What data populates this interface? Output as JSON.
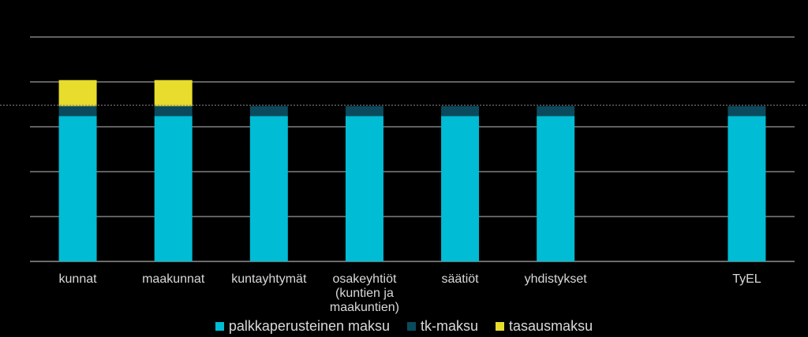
{
  "chart_data": {
    "type": "bar",
    "stacked": true,
    "categories": [
      "kunnat",
      "maakunnat",
      "kuntayhtymät",
      "osakeyhtiöt (kuntien ja maakuntien)",
      "säätiöt",
      "yhdistykset",
      "",
      "TyEL"
    ],
    "series": [
      {
        "name": "palkkaperusteinen maksu",
        "color": "#00bcd4",
        "values": [
          16.2,
          16.2,
          16.2,
          16.2,
          16.2,
          16.2,
          0,
          16.2
        ]
      },
      {
        "name": "tk-maksu",
        "color": "#0b4a5c",
        "values": [
          1.1,
          1.1,
          1.1,
          1.1,
          1.1,
          1.1,
          0,
          1.1
        ]
      },
      {
        "name": "tasausmaksu",
        "color": "#e8dc2c",
        "values": [
          2.9,
          2.9,
          0,
          0,
          0,
          0,
          0,
          0
        ]
      }
    ],
    "ylim": [
      0,
      25
    ],
    "grid": true,
    "reference_line": 17.4,
    "legend": "bottom",
    "title": "",
    "xlabel": "",
    "ylabel": ""
  }
}
